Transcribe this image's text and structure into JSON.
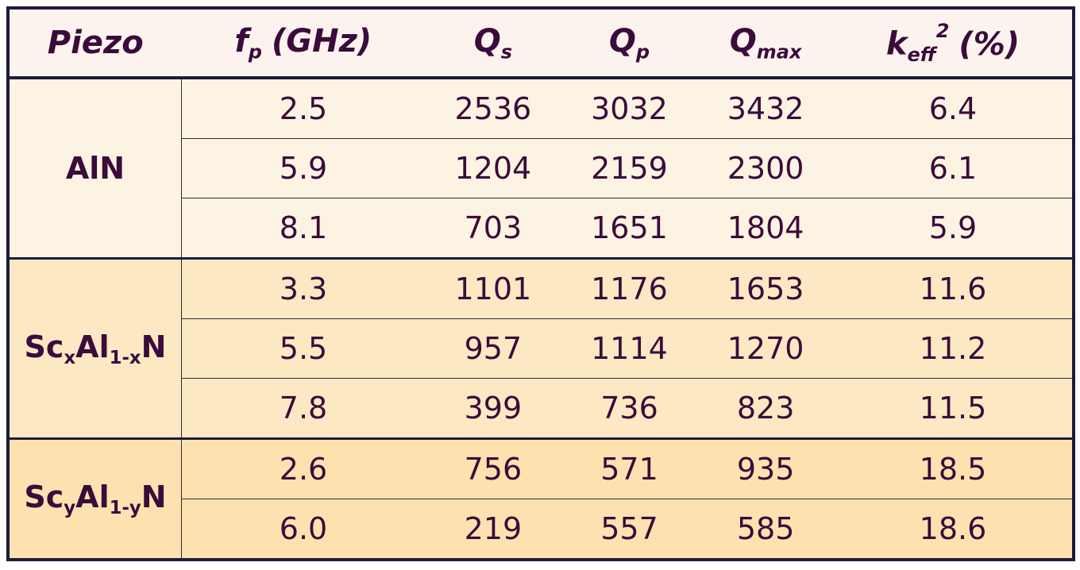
{
  "header": [
    {
      "text": "Piezo"
    },
    {
      "text": "f",
      "sub": "p",
      "rest": "(GHz)"
    },
    {
      "text": "Q",
      "sub": "s"
    },
    {
      "text": "Q",
      "sub": "p"
    },
    {
      "text": "Q",
      "sub": "max"
    },
    {
      "text": "k",
      "sub": "eff",
      "sup": "2",
      "rest": "(%)"
    }
  ],
  "groups": [
    {
      "label": [
        {
          "text": "AlN"
        }
      ],
      "color": "#fdf3e2",
      "rows": [
        [
          "2.5",
          "2536",
          "3032",
          "3432",
          "6.4"
        ],
        [
          "5.9",
          "1204",
          "2159",
          "2300",
          "6.1"
        ],
        [
          "8.1",
          "703",
          "1651",
          "1804",
          "5.9"
        ]
      ]
    },
    {
      "label": [
        {
          "text": "Sc"
        },
        {
          "text": "x",
          "sub": true
        },
        {
          "text": "Al"
        },
        {
          "text": "1-x",
          "sub": true
        },
        {
          "text": "N"
        }
      ],
      "color": "#fde8c4",
      "rows": [
        [
          "3.3",
          "1101",
          "1176",
          "1653",
          "11.6"
        ],
        [
          "5.5",
          "957",
          "1114",
          "1270",
          "11.2"
        ],
        [
          "7.8",
          "399",
          "736",
          "823",
          "11.5"
        ]
      ]
    },
    {
      "label": [
        {
          "text": "Sc"
        },
        {
          "text": "y",
          "sub": true
        },
        {
          "text": "Al"
        },
        {
          "text": "1-y",
          "sub": true
        },
        {
          "text": "N"
        }
      ],
      "color": "#fde2b0",
      "rows": [
        [
          "2.6",
          "756",
          "571",
          "935",
          "18.5"
        ],
        [
          "6.0",
          "219",
          "557",
          "585",
          "18.6"
        ]
      ]
    }
  ]
}
